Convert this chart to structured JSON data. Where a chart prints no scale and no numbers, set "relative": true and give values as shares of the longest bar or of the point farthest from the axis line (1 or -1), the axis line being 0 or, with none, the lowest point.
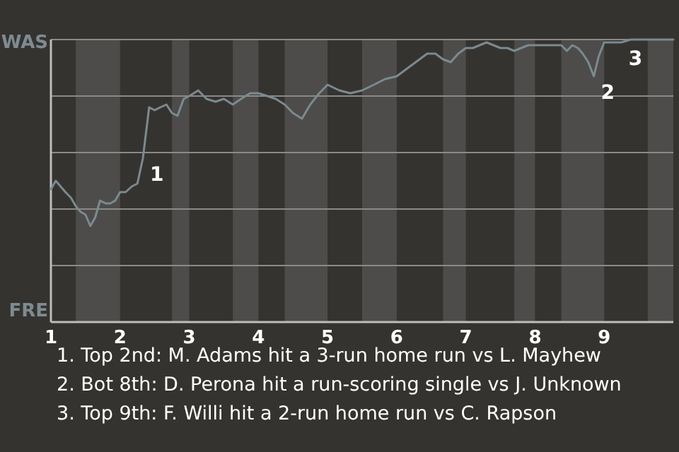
{
  "chart_data": {
    "type": "line",
    "relative": true,
    "grid": "y",
    "marker": "none",
    "line_style": "solid",
    "xlim": [
      1,
      10
    ],
    "xticks": [
      1,
      2,
      3,
      4,
      5,
      6,
      7,
      8,
      9
    ],
    "bands": [
      {
        "axis": "x",
        "from": 1.36,
        "to": 2,
        "color": "#4d4c4a"
      },
      {
        "axis": "x",
        "from": 2.75,
        "to": 3,
        "color": "#4d4c4a"
      },
      {
        "axis": "x",
        "from": 3.63,
        "to": 4,
        "color": "#4d4c4a"
      },
      {
        "axis": "x",
        "from": 4.38,
        "to": 5,
        "color": "#4d4c4a"
      },
      {
        "axis": "x",
        "from": 5.5,
        "to": 6,
        "color": "#4d4c4a"
      },
      {
        "axis": "x",
        "from": 6.67,
        "to": 7,
        "color": "#4d4c4a"
      },
      {
        "axis": "x",
        "from": 7.7,
        "to": 8,
        "color": "#4d4c4a"
      },
      {
        "axis": "x",
        "from": 8.38,
        "to": 9,
        "color": "#4d4c4a"
      },
      {
        "axis": "x",
        "from": 9.63,
        "to": 10,
        "color": "#4d4c4a"
      }
    ],
    "series": [
      {
        "color": "#7b8a90",
        "x": [
          1,
          1.07,
          1.14,
          1.21,
          1.29,
          1.36,
          1.43,
          1.5,
          1.57,
          1.64,
          1.71,
          1.79,
          1.86,
          1.93,
          2,
          2.08,
          2.17,
          2.25,
          2.33,
          2.42,
          2.5,
          2.58,
          2.67,
          2.75,
          2.83,
          2.92,
          3,
          3.13,
          3.25,
          3.38,
          3.5,
          3.63,
          3.75,
          3.88,
          4,
          4.13,
          4.25,
          4.38,
          4.5,
          4.63,
          4.75,
          4.88,
          5,
          5.17,
          5.33,
          5.5,
          5.67,
          5.83,
          6,
          6.11,
          6.22,
          6.33,
          6.44,
          6.56,
          6.67,
          6.78,
          6.89,
          7,
          7.1,
          7.2,
          7.3,
          7.4,
          7.5,
          7.6,
          7.7,
          7.8,
          7.9,
          8,
          8.08,
          8.15,
          8.23,
          8.31,
          8.38,
          8.46,
          8.54,
          8.62,
          8.69,
          8.77,
          8.85,
          8.92,
          9,
          9.13,
          9.25,
          9.38,
          9.5,
          9.63,
          9.75,
          9.88,
          10
        ],
        "values": [
          0.47,
          0.5,
          0.48,
          0.46,
          0.44,
          0.41,
          0.39,
          0.38,
          0.34,
          0.37,
          0.43,
          0.42,
          0.42,
          0.43,
          0.46,
          0.46,
          0.48,
          0.49,
          0.58,
          0.76,
          0.75,
          0.76,
          0.77,
          0.74,
          0.73,
          0.79,
          0.8,
          0.82,
          0.79,
          0.78,
          0.79,
          0.77,
          0.79,
          0.81,
          0.81,
          0.8,
          0.79,
          0.77,
          0.74,
          0.72,
          0.77,
          0.81,
          0.84,
          0.82,
          0.81,
          0.82,
          0.84,
          0.86,
          0.87,
          0.89,
          0.91,
          0.93,
          0.95,
          0.95,
          0.93,
          0.92,
          0.95,
          0.97,
          0.97,
          0.98,
          0.99,
          0.98,
          0.97,
          0.97,
          0.96,
          0.97,
          0.98,
          0.98,
          0.98,
          0.98,
          0.98,
          0.98,
          0.98,
          0.96,
          0.98,
          0.97,
          0.95,
          0.92,
          0.87,
          0.94,
          0.99,
          0.99,
          0.99,
          1,
          1,
          1,
          1,
          1,
          1
        ]
      }
    ],
    "annotations": [
      "WAS",
      "FRE",
      {
        "text": "1",
        "x": 2.33,
        "y": 0.58
      },
      {
        "text": "2",
        "x": 8.85,
        "y": 0.87
      },
      {
        "text": "3",
        "x": 9.25,
        "y": 0.99
      },
      "1. Top 2nd: M. Adams hit a 3-run home run vs L. Mayhew",
      "2. Bot 8th: D. Perona hit a run-scoring single vs J. Unknown",
      "3. Top 9th: F. Willi hit a 2-run home run vs C. Rapson"
    ]
  }
}
